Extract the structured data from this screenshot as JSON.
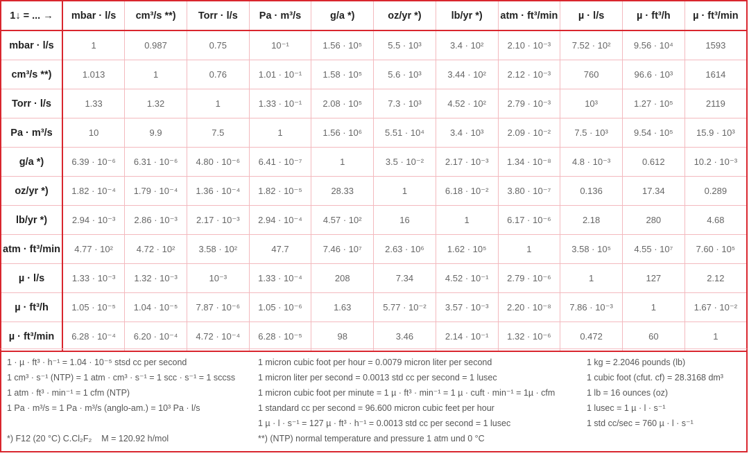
{
  "table": {
    "corner": "1↓ = ... →",
    "columns": [
      "mbar · l/s",
      "cm³/s **)",
      "Torr · l/s",
      "Pa · m³/s",
      "g/a *)",
      "oz/yr *)",
      "lb/yr *)",
      "atm · ft³/min",
      "µ · l/s",
      "µ · ft³/h",
      "µ · ft³/min"
    ],
    "rows": [
      {
        "label": "mbar · l/s",
        "cells": [
          "1",
          "0.987",
          "0.75",
          "10⁻¹",
          "1.56 · 10⁵",
          "5.5 · 10³",
          "3.4 · 10²",
          "2.10 · 10⁻³",
          "7.52 · 10²",
          "9.56 · 10⁴",
          "1593"
        ]
      },
      {
        "label": "cm³/s **)",
        "cells": [
          "1.013",
          "1",
          "0.76",
          "1.01 · 10⁻¹",
          "1.58 · 10⁵",
          "5.6 · 10³",
          "3.44 · 10²",
          "2.12 · 10⁻³",
          "760",
          "96.6 · 10³",
          "1614"
        ]
      },
      {
        "label": "Torr · l/s",
        "cells": [
          "1.33",
          "1.32",
          "1",
          "1.33 · 10⁻¹",
          "2.08 · 10⁵",
          "7.3 · 10³",
          "4.52 · 10²",
          "2.79 · 10⁻³",
          "10³",
          "1.27 · 10⁵",
          "2119"
        ]
      },
      {
        "label": "Pa · m³/s",
        "cells": [
          "10",
          "9.9",
          "7.5",
          "1",
          "1.56 · 10⁶",
          "5.51 · 10⁴",
          "3.4 · 10³",
          "2.09 · 10⁻²",
          "7.5 · 10³",
          "9.54 · 10⁵",
          "15.9 · 10³"
        ]
      },
      {
        "label": "g/a *)",
        "cells": [
          "6.39 · 10⁻⁶",
          "6.31 · 10⁻⁶",
          "4.80 · 10⁻⁶",
          "6.41 · 10⁻⁷",
          "1",
          "3.5 · 10⁻²",
          "2.17 · 10⁻³",
          "1.34 · 10⁻⁸",
          "4.8 · 10⁻³",
          "0.612",
          "10.2 · 10⁻³"
        ]
      },
      {
        "label": "oz/yr *)",
        "cells": [
          "1.82 · 10⁻⁴",
          "1.79 · 10⁻⁴",
          "1.36 · 10⁻⁴",
          "1.82 · 10⁻⁵",
          "28.33",
          "1",
          "6.18 · 10⁻²",
          "3.80 · 10⁻⁷",
          "0.136",
          "17.34",
          "0.289"
        ]
      },
      {
        "label": "lb/yr *)",
        "cells": [
          "2.94 · 10⁻³",
          "2.86 · 10⁻³",
          "2.17 · 10⁻³",
          "2.94 · 10⁻⁴",
          "4.57 · 10²",
          "16",
          "1",
          "6.17 · 10⁻⁶",
          "2.18",
          "280",
          "4.68"
        ]
      },
      {
        "label": "atm · ft³/min",
        "cells": [
          "4.77 · 10²",
          "4.72 · 10²",
          "3.58 · 10²",
          "47.7",
          "7.46 · 10⁷",
          "2.63 · 10⁶",
          "1.62 · 10⁵",
          "1",
          "3.58 · 10⁵",
          "4.55 · 10⁷",
          "7.60 · 10⁵"
        ]
      },
      {
        "label": "µ · l/s",
        "cells": [
          "1.33 · 10⁻³",
          "1.32 · 10⁻³",
          "10⁻³",
          "1.33 · 10⁻⁴",
          "208",
          "7.34",
          "4.52 · 10⁻¹",
          "2.79 · 10⁻⁶",
          "1",
          "127",
          "2.12"
        ]
      },
      {
        "label": "µ · ft³/h",
        "cells": [
          "1.05 · 10⁻⁵",
          "1.04 · 10⁻⁵",
          "7.87 · 10⁻⁶",
          "1.05 · 10⁻⁶",
          "1.63",
          "5.77 · 10⁻²",
          "3.57 · 10⁻³",
          "2.20 · 10⁻⁸",
          "7.86 · 10⁻³",
          "1",
          "1.67 · 10⁻²"
        ]
      },
      {
        "label": "µ · ft³/min",
        "cells": [
          "6.28 · 10⁻⁴",
          "6.20 · 10⁻⁴",
          "4.72 · 10⁻⁴",
          "6.28 · 10⁻⁵",
          "98",
          "3.46",
          "2.14 · 10⁻¹",
          "1.32 · 10⁻⁶",
          "0.472",
          "60",
          "1"
        ]
      }
    ]
  },
  "notes": {
    "col1": [
      "1 · µ · ft³ · h⁻¹ = 1.04 · 10⁻⁵ stsd cc per second",
      "1 cm³ · s⁻¹ (NTP) = 1 atm · cm³ · s⁻¹ = 1 scc · s⁻¹ = 1 sccss",
      "1 atm · ft³ · min⁻¹ = 1 cfm (NTP)",
      "1 Pa · m³/s = 1 Pa · m³/s (anglo-am.) = 10³ Pa · l/s",
      "",
      "*) F12 (20 °C) C.Cl₂F₂    M = 120.92 h/mol"
    ],
    "col2": [
      "1 micron cubic foot per hour = 0.0079 micron liter per second",
      "1 micron liter per second = 0.0013 std cc per second = 1 lusec",
      "1 micron cubic foot per minute = 1 µ · ft³ · min⁻¹ = 1 µ · cuft · min⁻¹ = 1µ · cfm",
      "1 standard cc per second = 96.600 micron cubic feet per hour",
      "1 µ · l · s⁻¹ = 127 µ · ft³ · h⁻¹ = 0.0013 std cc per second = 1 lusec",
      "**) (NTP) normal temperature and pressure 1 atm und 0 °C"
    ],
    "col3": [
      "1 kg = 2.2046 pounds (lb)",
      "1 cubic foot (cfut. cf) = 28.3168 dm³",
      "1 lb = 16 ounces (oz)",
      "1 lusec = 1 µ · l · s⁻¹",
      "1 std cc/sec = 760 µ · l · s⁻¹"
    ]
  },
  "colors": {
    "border": "#d9262e",
    "grid": "#f3b9be"
  }
}
